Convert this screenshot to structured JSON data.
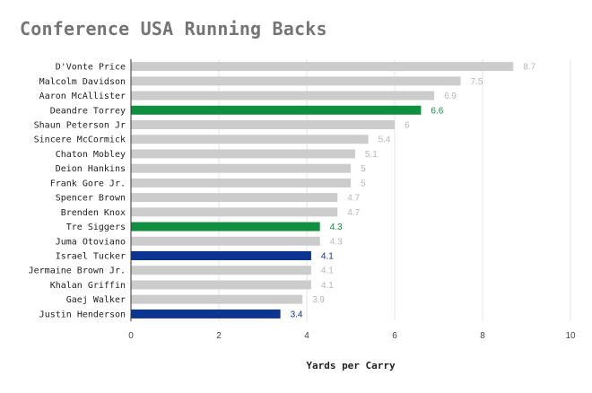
{
  "chart_data": {
    "type": "bar",
    "orientation": "horizontal",
    "title": "Conference USA Running Backs",
    "xlabel": "Yards per Carry",
    "ylabel": "",
    "xlim": [
      0,
      10
    ],
    "x_ticks": [
      0,
      2,
      4,
      6,
      8,
      10
    ],
    "grid": true,
    "legend": "none",
    "colors": {
      "default_bar": "#cccccc",
      "default_label": "#b7b7b7",
      "green": "#0f8f3f",
      "blue": "#0b3591"
    },
    "categories": [
      "D'Vonte Price",
      "Malcolm Davidson",
      "Aaron McAllister",
      "Deandre Torrey",
      "Shaun Peterson Jr",
      "Sincere McCormick",
      "Chaton Mobley",
      "Deion Hankins",
      "Frank Gore Jr.",
      "Spencer Brown",
      "Brenden Knox",
      "Tre Siggers",
      "Juma Otoviano",
      "Israel Tucker",
      "Jermaine Brown Jr.",
      "Khalan Griffin",
      "Gaej Walker",
      "Justin Henderson"
    ],
    "values": [
      8.7,
      7.5,
      6.9,
      6.6,
      6,
      5.4,
      5.1,
      5,
      5,
      4.7,
      4.7,
      4.3,
      4.3,
      4.1,
      4.1,
      4.1,
      3.9,
      3.4
    ],
    "value_labels": [
      "8.7",
      "7.5",
      "6.9",
      "6.6",
      "6",
      "5.4",
      "5.1",
      "5",
      "5",
      "4.7",
      "4.7",
      "4.3",
      "4.3",
      "4.1",
      "4.1",
      "4.1",
      "3.9",
      "3.4"
    ],
    "bar_colors": [
      "default",
      "default",
      "default",
      "green",
      "default",
      "default",
      "default",
      "default",
      "default",
      "default",
      "default",
      "green",
      "default",
      "blue",
      "default",
      "default",
      "default",
      "blue"
    ]
  }
}
